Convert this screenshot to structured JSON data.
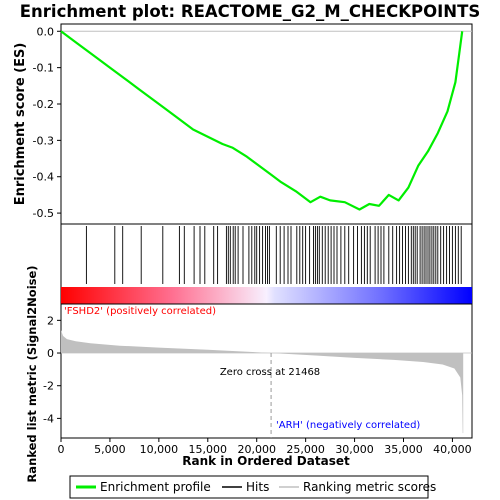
{
  "chart_data": {
    "type": "line",
    "title": "Enrichment plot: REACTOME_G2_M_CHECKPOINTS",
    "es_panel": {
      "ylabel": "Enrichment score (ES)",
      "ylim": [
        -0.53,
        0.02
      ],
      "yticks": [
        "0.0",
        "-0.1",
        "-0.2",
        "-0.3",
        "-0.4",
        "-0.5"
      ],
      "ytick_values": [
        0.0,
        -0.1,
        -0.2,
        -0.3,
        -0.4,
        -0.5
      ],
      "series": [
        {
          "name": "Enrichment profile",
          "color": "#00ee00",
          "x": [
            0,
            1500,
            2500,
            3500,
            5000,
            6500,
            8000,
            9000,
            10500,
            12000,
            13500,
            15000,
            16500,
            17500,
            19000,
            20500,
            21500,
            22500,
            24000,
            25500,
            26500,
            27500,
            29000,
            30500,
            31500,
            32500,
            33500,
            34500,
            35500,
            36500,
            37500,
            38500,
            39500,
            40300,
            40700,
            41000
          ],
          "y": [
            0.0,
            -0.03,
            -0.05,
            -0.07,
            -0.1,
            -0.13,
            -0.16,
            -0.18,
            -0.21,
            -0.24,
            -0.27,
            -0.29,
            -0.31,
            -0.32,
            -0.345,
            -0.375,
            -0.395,
            -0.415,
            -0.44,
            -0.47,
            -0.455,
            -0.465,
            -0.47,
            -0.49,
            -0.475,
            -0.48,
            -0.45,
            -0.465,
            -0.43,
            -0.37,
            -0.33,
            -0.28,
            -0.22,
            -0.14,
            -0.06,
            0.0
          ]
        }
      ]
    },
    "hits_panel": {
      "hit_positions": [
        2600,
        5500,
        6300,
        8200,
        10400,
        12100,
        12600,
        13600,
        14200,
        14700,
        15600,
        16000,
        16900,
        17100,
        17300,
        17600,
        17800,
        18100,
        18600,
        19200,
        19500,
        19800,
        20000,
        20300,
        20600,
        20900,
        21100,
        21300,
        22000,
        22400,
        22800,
        23200,
        23500,
        24100,
        24400,
        24700,
        25000,
        25400,
        25800,
        26000,
        26200,
        26400,
        26700,
        27000,
        27300,
        27600,
        27900,
        28200,
        28600,
        29000,
        29400,
        29900,
        30300,
        30700,
        31000,
        31300,
        31600,
        32100,
        32400,
        32700,
        33000,
        33500,
        33900,
        34300,
        34600,
        34900,
        35200,
        35500,
        35800,
        36000,
        36200,
        36400,
        36700,
        36900,
        37100,
        37300,
        37500,
        37700,
        37900,
        38100,
        38300,
        38500,
        38800,
        39100,
        39400,
        39700,
        40000,
        40300,
        40600,
        40900
      ],
      "bar_start_color": "#ff0000",
      "bar_mid_color": "#ffffff",
      "bar_end_color": "#0000ff"
    },
    "metric_panel": {
      "ylabel": "Ranked list metric (Signal2Noise)",
      "xlabel": "Rank in Ordered Dataset",
      "xlim": [
        0,
        42000
      ],
      "xticks": [
        "0",
        "5,000",
        "10,000",
        "15,000",
        "20,000",
        "25,000",
        "30,000",
        "35,000",
        "40,000"
      ],
      "xtick_values": [
        0,
        5000,
        10000,
        15000,
        20000,
        25000,
        30000,
        35000,
        40000
      ],
      "ylim": [
        -5.2,
        3.0
      ],
      "yticks": [
        "2",
        "0",
        "-2",
        "-4"
      ],
      "ytick_values": [
        2,
        0,
        -2,
        -4
      ],
      "fill_color": "#c0c0c0",
      "x": [
        0,
        200,
        600,
        1500,
        3000,
        6000,
        10000,
        15000,
        21468,
        26000,
        30000,
        34000,
        37000,
        39000,
        40200,
        40800,
        41000,
        41050,
        41100
      ],
      "y": [
        1.4,
        1.05,
        0.85,
        0.72,
        0.6,
        0.45,
        0.33,
        0.2,
        0.0,
        -0.15,
        -0.3,
        -0.42,
        -0.55,
        -0.7,
        -0.95,
        -1.5,
        -2.6,
        -4.9,
        -4.9
      ]
    },
    "annotations": {
      "positive": "'FSHD2' (positively correlated)",
      "negative": "'ARH' (negatively correlated)",
      "zero_cross": "Zero cross at 21468",
      "zero_cross_rank": 21468
    },
    "legend": {
      "items": [
        {
          "label": "Enrichment profile",
          "color": "#00ee00"
        },
        {
          "label": "Hits",
          "color": "#000000"
        },
        {
          "label": "Ranking metric scores",
          "color": "#c0c0c0"
        }
      ]
    },
    "colors": {
      "positive_text": "#ff0000",
      "negative_text": "#0000ff",
      "zero_line": "#c0c0c0"
    }
  }
}
